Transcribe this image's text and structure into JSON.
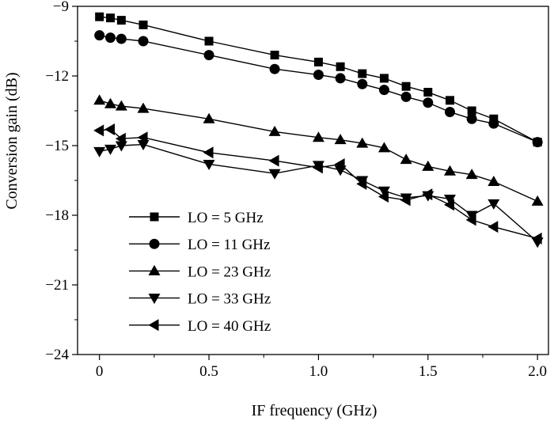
{
  "chart_data": {
    "type": "line",
    "xlabel": "IF frequency (GHz)",
    "ylabel": "Conversion gain (dB)",
    "xlim": [
      -0.1,
      2.05
    ],
    "ylim": [
      -24,
      -9
    ],
    "xticks": [
      0,
      0.5,
      1.0,
      1.5,
      2.0
    ],
    "xtick_labels": [
      "0",
      "0.5",
      "1.0",
      "1.5",
      "2.0"
    ],
    "yticks": [
      -9,
      -12,
      -15,
      -18,
      -21,
      -24
    ],
    "ytick_labels": [
      "−9",
      "−12",
      "−15",
      "−18",
      "−21",
      "−24"
    ],
    "grid": false,
    "legend_position": "bottom-left",
    "series": [
      {
        "name": "LO = 5 GHz",
        "marker": "square",
        "points": [
          [
            0.0,
            -9.45
          ],
          [
            0.05,
            -9.5
          ],
          [
            0.1,
            -9.6
          ],
          [
            0.2,
            -9.8
          ],
          [
            0.5,
            -10.5
          ],
          [
            0.8,
            -11.1
          ],
          [
            1.0,
            -11.4
          ],
          [
            1.1,
            -11.6
          ],
          [
            1.2,
            -11.9
          ],
          [
            1.3,
            -12.1
          ],
          [
            1.4,
            -12.45
          ],
          [
            1.5,
            -12.7
          ],
          [
            1.6,
            -13.05
          ],
          [
            1.7,
            -13.5
          ],
          [
            1.8,
            -13.85
          ],
          [
            2.0,
            -14.85
          ]
        ]
      },
      {
        "name": "LO = 11 GHz",
        "marker": "circle",
        "points": [
          [
            0.0,
            -10.25
          ],
          [
            0.05,
            -10.35
          ],
          [
            0.1,
            -10.4
          ],
          [
            0.2,
            -10.5
          ],
          [
            0.5,
            -11.1
          ],
          [
            0.8,
            -11.7
          ],
          [
            1.0,
            -11.95
          ],
          [
            1.1,
            -12.1
          ],
          [
            1.2,
            -12.35
          ],
          [
            1.3,
            -12.6
          ],
          [
            1.4,
            -12.9
          ],
          [
            1.5,
            -13.15
          ],
          [
            1.6,
            -13.55
          ],
          [
            1.7,
            -13.85
          ],
          [
            1.8,
            -14.05
          ],
          [
            2.0,
            -14.85
          ]
        ]
      },
      {
        "name": "LO = 23 GHz",
        "marker": "triangle-up",
        "points": [
          [
            0.0,
            -13.05
          ],
          [
            0.05,
            -13.2
          ],
          [
            0.1,
            -13.3
          ],
          [
            0.2,
            -13.4
          ],
          [
            0.5,
            -13.85
          ],
          [
            0.8,
            -14.4
          ],
          [
            1.0,
            -14.65
          ],
          [
            1.1,
            -14.75
          ],
          [
            1.2,
            -14.9
          ],
          [
            1.3,
            -15.1
          ],
          [
            1.4,
            -15.6
          ],
          [
            1.5,
            -15.9
          ],
          [
            1.6,
            -16.1
          ],
          [
            1.7,
            -16.25
          ],
          [
            1.8,
            -16.55
          ],
          [
            2.0,
            -17.4
          ]
        ]
      },
      {
        "name": "LO = 33 GHz",
        "marker": "triangle-down",
        "points": [
          [
            0.0,
            -15.25
          ],
          [
            0.05,
            -15.15
          ],
          [
            0.1,
            -15.0
          ],
          [
            0.2,
            -14.95
          ],
          [
            0.5,
            -15.8
          ],
          [
            0.8,
            -16.2
          ],
          [
            1.0,
            -15.85
          ],
          [
            1.1,
            -16.05
          ],
          [
            1.2,
            -16.5
          ],
          [
            1.3,
            -16.95
          ],
          [
            1.4,
            -17.25
          ],
          [
            1.5,
            -17.15
          ],
          [
            1.6,
            -17.3
          ],
          [
            1.7,
            -18.0
          ],
          [
            1.8,
            -17.5
          ],
          [
            2.0,
            -19.15
          ]
        ]
      },
      {
        "name": "LO = 40 GHz",
        "marker": "triangle-left",
        "points": [
          [
            0.0,
            -14.35
          ],
          [
            0.05,
            -14.3
          ],
          [
            0.1,
            -14.7
          ],
          [
            0.2,
            -14.65
          ],
          [
            0.5,
            -15.3
          ],
          [
            0.8,
            -15.65
          ],
          [
            1.0,
            -15.95
          ],
          [
            1.1,
            -15.8
          ],
          [
            1.2,
            -16.65
          ],
          [
            1.3,
            -17.2
          ],
          [
            1.4,
            -17.35
          ],
          [
            1.5,
            -17.1
          ],
          [
            1.6,
            -17.55
          ],
          [
            1.7,
            -18.2
          ],
          [
            1.8,
            -18.5
          ],
          [
            2.0,
            -19.0
          ]
        ]
      }
    ]
  }
}
